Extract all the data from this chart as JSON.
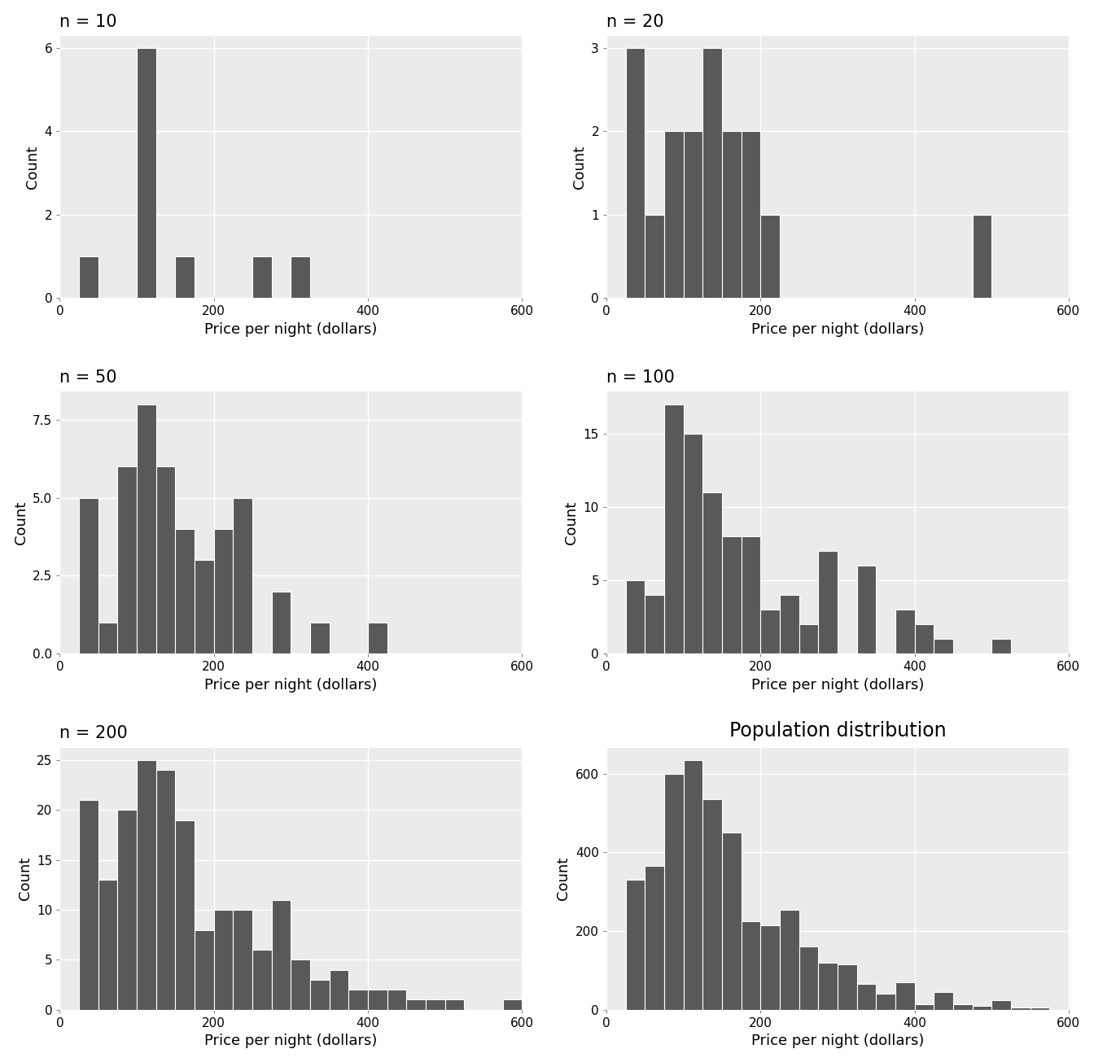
{
  "panels": [
    {
      "title": "n = 10",
      "bin_width": 25,
      "bins_left": [
        25,
        100,
        150,
        250,
        300
      ],
      "counts": [
        1,
        6,
        1,
        1,
        1
      ]
    },
    {
      "title": "n = 20",
      "bin_width": 25,
      "bins_left": [
        25,
        50,
        75,
        100,
        125,
        150,
        175,
        200,
        475
      ],
      "counts": [
        3,
        1,
        2,
        2,
        3,
        2,
        2,
        1,
        1
      ]
    },
    {
      "title": "n = 50",
      "bin_width": 25,
      "bins_left": [
        25,
        50,
        75,
        100,
        125,
        150,
        175,
        200,
        225,
        275,
        325,
        400
      ],
      "counts": [
        5,
        1,
        6,
        8,
        6,
        4,
        3,
        4,
        5,
        2,
        1,
        1
      ]
    },
    {
      "title": "n = 100",
      "bin_width": 25,
      "bins_left": [
        25,
        50,
        75,
        100,
        125,
        150,
        175,
        200,
        225,
        250,
        275,
        325,
        375,
        400,
        425,
        500
      ],
      "counts": [
        5,
        4,
        17,
        15,
        11,
        8,
        8,
        3,
        4,
        2,
        7,
        6,
        3,
        2,
        1,
        1
      ]
    },
    {
      "title": "n = 200",
      "bin_width": 25,
      "bins_left": [
        25,
        50,
        75,
        100,
        125,
        150,
        175,
        200,
        225,
        250,
        275,
        300,
        325,
        350,
        375,
        400,
        425,
        450,
        475,
        500,
        575
      ],
      "counts": [
        21,
        13,
        20,
        25,
        24,
        19,
        8,
        10,
        10,
        6,
        11,
        5,
        3,
        4,
        2,
        2,
        2,
        1,
        1,
        1,
        1
      ]
    },
    {
      "title": "Population distribution",
      "bin_width": 25,
      "bins_left": [
        25,
        50,
        75,
        100,
        125,
        150,
        175,
        200,
        225,
        250,
        275,
        300,
        325,
        350,
        375,
        400,
        425,
        450,
        475,
        500,
        525,
        550
      ],
      "counts": [
        330,
        365,
        600,
        635,
        535,
        450,
        225,
        215,
        255,
        160,
        120,
        115,
        65,
        40,
        70,
        15,
        45,
        15,
        10,
        25,
        5,
        5
      ]
    }
  ],
  "bar_color": "#595959",
  "bg_color": "#EBEBEB",
  "xlabel": "Price per night (dollars)",
  "ylabel": "Count",
  "xlim": [
    0,
    600
  ],
  "xticks": [
    0,
    200,
    400,
    600
  ],
  "grid_color": "#FFFFFF",
  "title_fontsize": 15,
  "label_fontsize": 13,
  "tick_fontsize": 11,
  "yticks_per_panel": [
    [
      0,
      2,
      4,
      6
    ],
    [
      0,
      1,
      2,
      3
    ],
    [
      0.0,
      2.5,
      5.0,
      7.5
    ],
    [
      0,
      5,
      10,
      15
    ],
    [
      0,
      5,
      10,
      15,
      20,
      25
    ],
    [
      0,
      200,
      400,
      600
    ]
  ]
}
